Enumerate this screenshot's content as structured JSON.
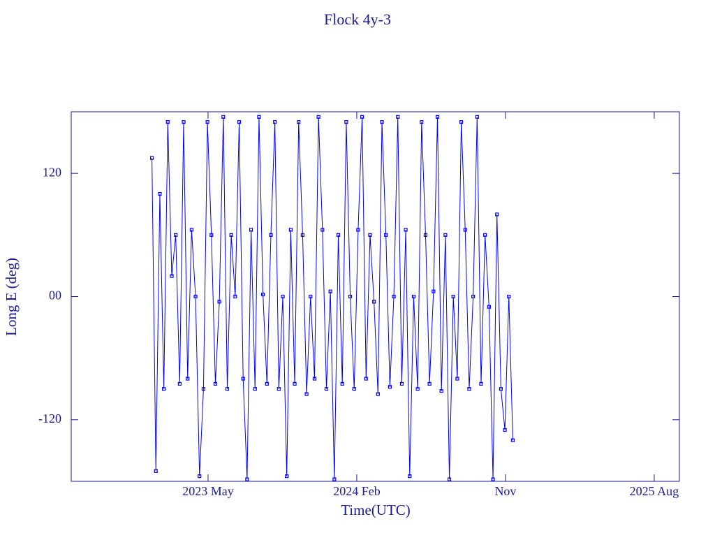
{
  "chart_data": {
    "type": "line",
    "title": "Flock 4y-3",
    "x_label": "Time(UTC)",
    "y_label": "Long E (deg)",
    "xlim": [
      2022.643,
      2025.71
    ],
    "ylim": [
      -180,
      180
    ],
    "xticks": [
      {
        "value": 2023.333,
        "label": "2023 May"
      },
      {
        "value": 2024.083,
        "label": "2024 Feb"
      },
      {
        "value": 2024.833,
        "label": "Nov"
      },
      {
        "value": 2025.583,
        "label": "2025 Aug"
      }
    ],
    "yticks": [
      -120,
      {
        "value": 0,
        "label": "00"
      },
      120
    ],
    "grid": false,
    "series": [
      {
        "name": "Flock 4y-3",
        "color": "#0000ff",
        "x": [
          2023.05,
          2023.07,
          2023.09,
          2023.11,
          2023.13,
          2023.15,
          2023.17,
          2023.19,
          2023.21,
          2023.23,
          2023.25,
          2023.27,
          2023.29,
          2023.31,
          2023.33,
          2023.35,
          2023.37,
          2023.39,
          2023.41,
          2023.43,
          2023.45,
          2023.47,
          2023.49,
          2023.51,
          2023.53,
          2023.55,
          2023.57,
          2023.59,
          2023.61,
          2023.63,
          2023.65,
          2023.67,
          2023.69,
          2023.71,
          2023.73,
          2023.75,
          2023.77,
          2023.79,
          2023.81,
          2023.83,
          2023.85,
          2023.87,
          2023.89,
          2023.91,
          2023.93,
          2023.95,
          2023.97,
          2023.99,
          2024.01,
          2024.03,
          2024.05,
          2024.07,
          2024.09,
          2024.11,
          2024.13,
          2024.15,
          2024.17,
          2024.19,
          2024.21,
          2024.23,
          2024.25,
          2024.27,
          2024.29,
          2024.31,
          2024.33,
          2024.35,
          2024.37,
          2024.39,
          2024.41,
          2024.43,
          2024.45,
          2024.47,
          2024.49,
          2024.51,
          2024.53,
          2024.55,
          2024.57,
          2024.59,
          2024.61,
          2024.63,
          2024.65,
          2024.67,
          2024.69,
          2024.71,
          2024.73,
          2024.75,
          2024.77,
          2024.79,
          2024.81,
          2024.83,
          2024.85,
          2024.87
        ],
        "values": [
          135,
          -170,
          100,
          -90,
          170,
          20,
          60,
          -85,
          170,
          -80,
          65,
          0,
          -175,
          -90,
          170,
          60,
          -85,
          -5,
          175,
          -90,
          60,
          0,
          170,
          -80,
          -178,
          65,
          -90,
          175,
          2,
          -85,
          60,
          170,
          -90,
          0,
          -175,
          65,
          -85,
          170,
          60,
          -95,
          0,
          -80,
          175,
          65,
          -90,
          5,
          -178,
          60,
          -85,
          170,
          0,
          -90,
          65,
          175,
          -80,
          60,
          -5,
          -95,
          170,
          60,
          -88,
          0,
          175,
          -85,
          65,
          -175,
          0,
          -90,
          170,
          60,
          -85,
          5,
          175,
          -92,
          60,
          -178,
          0,
          -80,
          170,
          65,
          -90,
          0,
          175,
          -85,
          60,
          -10,
          -178,
          80,
          -90,
          -130,
          0,
          -140
        ]
      }
    ]
  }
}
